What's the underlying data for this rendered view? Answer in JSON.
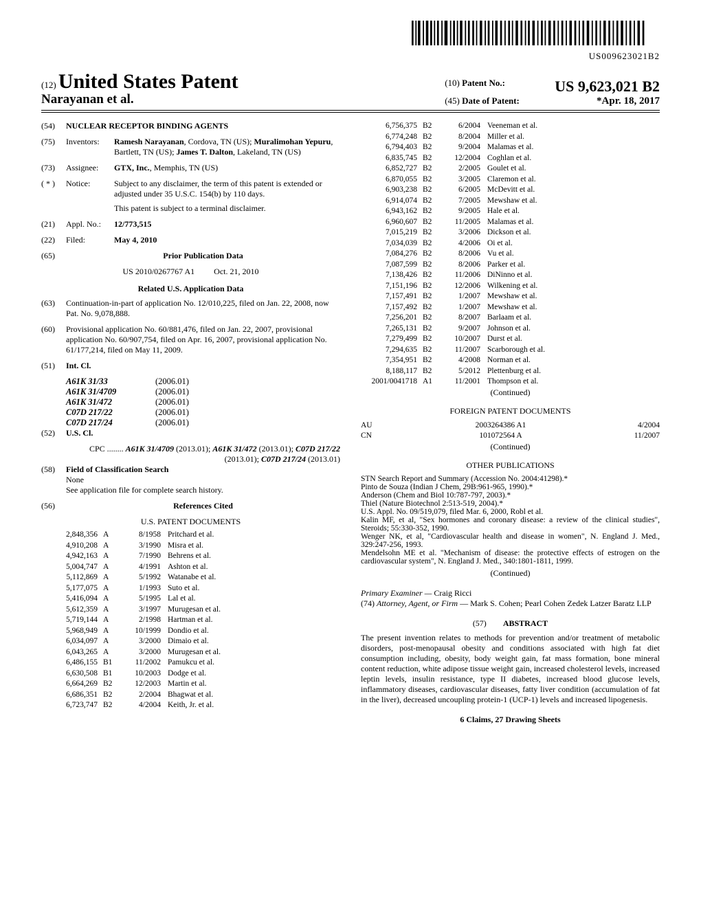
{
  "barcode_text": "US009623021B2",
  "header": {
    "prefix12": "(12)",
    "title_big": "United States Patent",
    "inventor_line": "Narayanan et al.",
    "prefix10": "(10)",
    "patno_label": "Patent No.:",
    "patno": "US 9,623,021 B2",
    "prefix45": "(45)",
    "dop_label": "Date of Patent:",
    "dop": "*Apr. 18, 2017"
  },
  "left": {
    "f54_label": "(54)",
    "f54_text": "NUCLEAR RECEPTOR BINDING AGENTS",
    "f75_label": "(75)",
    "f75_head": "Inventors:",
    "f75_text": "Ramesh Narayanan, Cordova, TN (US); Muralimohan Yepuru, Bartlett, TN (US); James T. Dalton, Lakeland, TN (US)",
    "f73_label": "(73)",
    "f73_head": "Assignee:",
    "f73_text": "GTX, Inc., Memphis, TN (US)",
    "fstar_label": "( * )",
    "fstar_head": "Notice:",
    "fstar_text1": "Subject to any disclaimer, the term of this patent is extended or adjusted under 35 U.S.C. 154(b) by 110 days.",
    "fstar_text2": "This patent is subject to a terminal disclaimer.",
    "f21_label": "(21)",
    "f21_head": "Appl. No.:",
    "f21_text": "12/773,515",
    "f22_label": "(22)",
    "f22_head": "Filed:",
    "f22_text": "May 4, 2010",
    "f65_label": "(65)",
    "f65_head": "Prior Publication Data",
    "f65_a": "US 2010/0267767 A1",
    "f65_b": "Oct. 21, 2010",
    "related_head": "Related U.S. Application Data",
    "f63_label": "(63)",
    "f63_text": "Continuation-in-part of application No. 12/010,225, filed on Jan. 22, 2008, now Pat. No. 9,078,888.",
    "f60_label": "(60)",
    "f60_text": "Provisional application No. 60/881,476, filed on Jan. 22, 2007, provisional application No. 60/907,754, filed on Apr. 16, 2007, provisional application No. 61/177,214, filed on May 11, 2009.",
    "f51_label": "(51)",
    "f51_head": "Int. Cl.",
    "intcl": [
      {
        "a": "A61K 31/33",
        "b": "(2006.01)"
      },
      {
        "a": "A61K 31/4709",
        "b": "(2006.01)"
      },
      {
        "a": "A61K 31/472",
        "b": "(2006.01)"
      },
      {
        "a": "C07D 217/22",
        "b": "(2006.01)"
      },
      {
        "a": "C07D 217/24",
        "b": "(2006.01)"
      }
    ],
    "f52_label": "(52)",
    "f52_head": "U.S. Cl.",
    "f52_text": "CPC ........ A61K 31/4709 (2013.01); A61K 31/472 (2013.01); C07D 217/22 (2013.01); C07D 217/24 (2013.01)",
    "f58_label": "(58)",
    "f58_head": "Field of Classification Search",
    "f58_text1": "None",
    "f58_text2": "See application file for complete search history.",
    "f56_label": "(56)",
    "f56_head": "References Cited",
    "uspat_head": "U.S. PATENT DOCUMENTS",
    "us_refs": [
      {
        "n": "2,848,356",
        "t": "A",
        "d": "8/1958",
        "a": "Pritchard et al."
      },
      {
        "n": "4,910,208",
        "t": "A",
        "d": "3/1990",
        "a": "Misra et al."
      },
      {
        "n": "4,942,163",
        "t": "A",
        "d": "7/1990",
        "a": "Behrens et al."
      },
      {
        "n": "5,004,747",
        "t": "A",
        "d": "4/1991",
        "a": "Ashton et al."
      },
      {
        "n": "5,112,869",
        "t": "A",
        "d": "5/1992",
        "a": "Watanabe et al."
      },
      {
        "n": "5,177,075",
        "t": "A",
        "d": "1/1993",
        "a": "Suto et al."
      },
      {
        "n": "5,416,094",
        "t": "A",
        "d": "5/1995",
        "a": "Lal et al."
      },
      {
        "n": "5,612,359",
        "t": "A",
        "d": "3/1997",
        "a": "Murugesan et al."
      },
      {
        "n": "5,719,144",
        "t": "A",
        "d": "2/1998",
        "a": "Hartman et al."
      },
      {
        "n": "5,968,949",
        "t": "A",
        "d": "10/1999",
        "a": "Dondio et al."
      },
      {
        "n": "6,034,097",
        "t": "A",
        "d": "3/2000",
        "a": "Dimaio et al."
      },
      {
        "n": "6,043,265",
        "t": "A",
        "d": "3/2000",
        "a": "Murugesan et al."
      },
      {
        "n": "6,486,155",
        "t": "B1",
        "d": "11/2002",
        "a": "Pamukcu et al."
      },
      {
        "n": "6,630,508",
        "t": "B1",
        "d": "10/2003",
        "a": "Dodge et al."
      },
      {
        "n": "6,664,269",
        "t": "B2",
        "d": "12/2003",
        "a": "Martin et al."
      },
      {
        "n": "6,686,351",
        "t": "B2",
        "d": "2/2004",
        "a": "Bhagwat et al."
      },
      {
        "n": "6,723,747",
        "t": "B2",
        "d": "4/2004",
        "a": "Keith, Jr. et al."
      }
    ]
  },
  "right": {
    "us_refs2": [
      {
        "n": "6,756,375",
        "t": "B2",
        "d": "6/2004",
        "a": "Veeneman et al."
      },
      {
        "n": "6,774,248",
        "t": "B2",
        "d": "8/2004",
        "a": "Miller et al."
      },
      {
        "n": "6,794,403",
        "t": "B2",
        "d": "9/2004",
        "a": "Malamas et al."
      },
      {
        "n": "6,835,745",
        "t": "B2",
        "d": "12/2004",
        "a": "Coghlan et al."
      },
      {
        "n": "6,852,727",
        "t": "B2",
        "d": "2/2005",
        "a": "Goulet et al."
      },
      {
        "n": "6,870,055",
        "t": "B2",
        "d": "3/2005",
        "a": "Claremon et al."
      },
      {
        "n": "6,903,238",
        "t": "B2",
        "d": "6/2005",
        "a": "McDevitt et al."
      },
      {
        "n": "6,914,074",
        "t": "B2",
        "d": "7/2005",
        "a": "Mewshaw et al."
      },
      {
        "n": "6,943,162",
        "t": "B2",
        "d": "9/2005",
        "a": "Hale et al."
      },
      {
        "n": "6,960,607",
        "t": "B2",
        "d": "11/2005",
        "a": "Malamas et al."
      },
      {
        "n": "7,015,219",
        "t": "B2",
        "d": "3/2006",
        "a": "Dickson et al."
      },
      {
        "n": "7,034,039",
        "t": "B2",
        "d": "4/2006",
        "a": "Oi et al."
      },
      {
        "n": "7,084,276",
        "t": "B2",
        "d": "8/2006",
        "a": "Vu et al."
      },
      {
        "n": "7,087,599",
        "t": "B2",
        "d": "8/2006",
        "a": "Parker et al."
      },
      {
        "n": "7,138,426",
        "t": "B2",
        "d": "11/2006",
        "a": "DiNinno et al."
      },
      {
        "n": "7,151,196",
        "t": "B2",
        "d": "12/2006",
        "a": "Wilkening et al."
      },
      {
        "n": "7,157,491",
        "t": "B2",
        "d": "1/2007",
        "a": "Mewshaw et al."
      },
      {
        "n": "7,157,492",
        "t": "B2",
        "d": "1/2007",
        "a": "Mewshaw et al."
      },
      {
        "n": "7,256,201",
        "t": "B2",
        "d": "8/2007",
        "a": "Barlaam et al."
      },
      {
        "n": "7,265,131",
        "t": "B2",
        "d": "9/2007",
        "a": "Johnson et al."
      },
      {
        "n": "7,279,499",
        "t": "B2",
        "d": "10/2007",
        "a": "Durst et al."
      },
      {
        "n": "7,294,635",
        "t": "B2",
        "d": "11/2007",
        "a": "Scarborough et al."
      },
      {
        "n": "7,354,951",
        "t": "B2",
        "d": "4/2008",
        "a": "Norman et al."
      },
      {
        "n": "8,188,117",
        "t": "B2",
        "d": "5/2012",
        "a": "Plettenburg et al."
      },
      {
        "n": "2001/0041718",
        "t": "A1",
        "d": "11/2001",
        "a": "Thompson et al."
      }
    ],
    "continued": "(Continued)",
    "foreign_head": "FOREIGN PATENT DOCUMENTS",
    "foreign": [
      {
        "c": "AU",
        "n": "2003264386 A1",
        "d": "4/2004"
      },
      {
        "c": "CN",
        "n": "101072564 A",
        "d": "11/2007"
      }
    ],
    "other_head": "OTHER PUBLICATIONS",
    "other_text": "STN Search Report and Summary (Accession No. 2004:41298).*\nPinto de Souza (Indian J Chem, 29B:961-965, 1990).*\nAnderson (Chem and Biol 10:787-797, 2003).*\nThiel (Nature Biotechnol 2:513-519, 2004).*\nU.S. Appl. No. 09/519,079, filed Mar. 6, 2000, Robl et al.\nKalin MF, et al, \"Sex hormones and coronary disease: a review of the clinical studies\", Steroids; 55:330-352, 1990.\nWenger NK, et al, \"Cardiovascular health and disease in women\", N. England J. Med., 329:247-256, 1993.\nMendelsohn ME et al. \"Mechanism of disease: the protective effects of estrogen on the cardiovascular system\", N. England J. Med., 340:1801-1811, 1999.",
    "examiner_label": "Primary Examiner —",
    "examiner": "Craig Ricci",
    "attorney_label": "(74) Attorney, Agent, or Firm —",
    "attorney": "Mark S. Cohen; Pearl Cohen Zedek Latzer Baratz LLP",
    "abstract_label": "(57)",
    "abstract_head": "ABSTRACT",
    "abstract_text": "The present invention relates to methods for prevention and/or treatment of metabolic disorders, post-menopausal obesity and conditions associated with high fat diet consumption including, obesity, body weight gain, fat mass formation, bone mineral content reduction, white adipose tissue weight gain, increased cholesterol levels, increased leptin levels, insulin resistance, type II diabetes, increased blood glucose levels, inflammatory diseases, cardiovascular diseases, fatty liver condition (accumulation of fat in the liver), decreased uncoupling protein-1 (UCP-1) levels and increased lipogenesis.",
    "claims_line": "6 Claims, 27 Drawing Sheets"
  }
}
